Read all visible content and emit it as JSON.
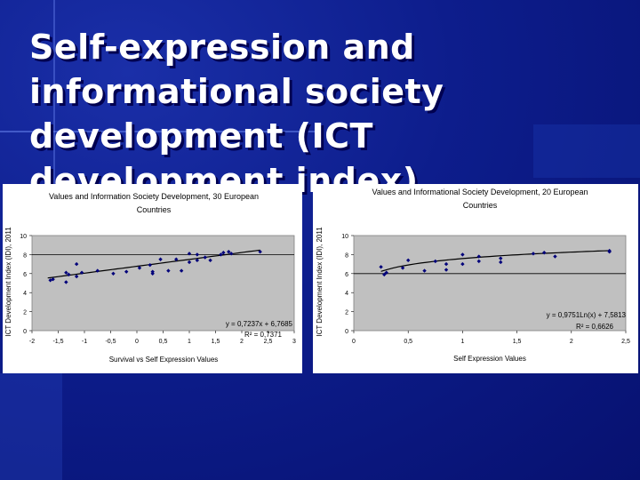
{
  "slide": {
    "title": "Self-expression and informational society development (ICT development index)"
  },
  "colors": {
    "background": "#0d1d8c",
    "plot_area": "#c0c0c0",
    "points": "#00007a",
    "trendline": "#000000"
  },
  "chart_data": [
    {
      "type": "scatter",
      "title": "Values and Information Society Development, 30 European Countries",
      "xlabel": "Survival vs Self Expression Values",
      "ylabel": "ICT Development Index (IDI), 2011",
      "xlim": [
        -2,
        3
      ],
      "ylim": [
        0,
        10
      ],
      "xticks": [
        "-2",
        "-1,5",
        "-1",
        "-0,5",
        "0",
        "0,5",
        "1",
        "1,5",
        "2",
        "2,5",
        "3"
      ],
      "yticks": [
        "0",
        "2",
        "4",
        "6",
        "8",
        "10"
      ],
      "gridlines_y": [
        8
      ],
      "points": [
        [
          -1.65,
          5.3
        ],
        [
          -1.6,
          5.4
        ],
        [
          -1.35,
          5.1
        ],
        [
          -1.35,
          6.1
        ],
        [
          -1.3,
          5.9
        ],
        [
          -1.15,
          7.0
        ],
        [
          -1.15,
          5.7
        ],
        [
          -1.05,
          6.1
        ],
        [
          -0.75,
          6.3
        ],
        [
          -0.45,
          6.0
        ],
        [
          -0.2,
          6.2
        ],
        [
          0.05,
          6.6
        ],
        [
          0.25,
          6.9
        ],
        [
          0.3,
          6.2
        ],
        [
          0.3,
          6.0
        ],
        [
          0.45,
          7.5
        ],
        [
          0.6,
          6.3
        ],
        [
          0.75,
          7.5
        ],
        [
          0.85,
          6.3
        ],
        [
          1.0,
          7.2
        ],
        [
          1.0,
          8.1
        ],
        [
          1.15,
          7.4
        ],
        [
          1.15,
          8.0
        ],
        [
          1.3,
          7.7
        ],
        [
          1.4,
          7.4
        ],
        [
          1.6,
          8.0
        ],
        [
          1.65,
          8.2
        ],
        [
          1.75,
          8.3
        ],
        [
          1.8,
          8.1
        ],
        [
          2.35,
          8.3
        ]
      ],
      "trendline": {
        "slope": 0.7237,
        "intercept": 6.7685,
        "x_range": [
          -1.7,
          2.35
        ]
      },
      "equation": "y = 0,7237x + 6,7685",
      "r_squared": "R² = 0,7371"
    },
    {
      "type": "scatter",
      "title": "Values and Informational Society Development, 20 European Countries",
      "xlabel": "Self Expression Values",
      "ylabel": "ICT Development Index (IDI), 2011",
      "xlim": [
        0,
        2.5
      ],
      "ylim": [
        0,
        10
      ],
      "xticks": [
        "0",
        "0,5",
        "1",
        "1,5",
        "2",
        "2,5"
      ],
      "yticks": [
        "0",
        "2",
        "4",
        "6",
        "8",
        "10"
      ],
      "gridlines_y": [
        6
      ],
      "points": [
        [
          0.25,
          6.7
        ],
        [
          0.28,
          5.9
        ],
        [
          0.3,
          6.1
        ],
        [
          0.45,
          6.6
        ],
        [
          0.5,
          7.4
        ],
        [
          0.65,
          6.3
        ],
        [
          0.75,
          7.3
        ],
        [
          0.85,
          6.4
        ],
        [
          0.85,
          7.0
        ],
        [
          1.0,
          7.0
        ],
        [
          1.0,
          8.0
        ],
        [
          1.15,
          7.3
        ],
        [
          1.15,
          7.8
        ],
        [
          1.35,
          7.6
        ],
        [
          1.35,
          7.2
        ],
        [
          1.65,
          8.1
        ],
        [
          1.75,
          8.2
        ],
        [
          1.85,
          7.8
        ],
        [
          2.35,
          8.3
        ],
        [
          2.35,
          8.4
        ]
      ],
      "trendline": {
        "kind": "log",
        "a": 0.9751,
        "b": 7.5813,
        "x_range": [
          0.25,
          2.35
        ]
      },
      "equation": "y = 0,9751Ln(x) + 7,5813",
      "r_squared": "R² = 0,6626"
    }
  ]
}
